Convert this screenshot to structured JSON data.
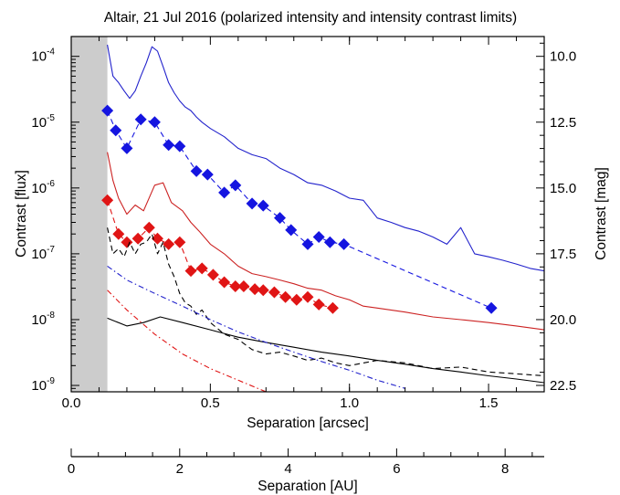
{
  "chart_data": {
    "type": "line",
    "title": "Altair, 21 Jul 2016 (polarized intensity and intensity contrast limits)",
    "xlabel": "Separation [arcsec]",
    "ylabel": "Contrast [flux]",
    "ylabel_right": "Contrast [mag]",
    "x2label": "Separation [AU]",
    "xlim": [
      0.0,
      1.7
    ],
    "ylim": [
      8e-10,
      0.0002
    ],
    "yscale": "log",
    "x_ticks": [
      "0.0",
      "0.5",
      "1.0",
      "1.5"
    ],
    "y_ticks": [
      {
        "value": 0.0001,
        "base": "10",
        "exp": "-4"
      },
      {
        "value": 1e-05,
        "base": "10",
        "exp": "-5"
      },
      {
        "value": 1e-06,
        "base": "10",
        "exp": "-6"
      },
      {
        "value": 1e-07,
        "base": "10",
        "exp": "-7"
      },
      {
        "value": 1e-08,
        "base": "10",
        "exp": "-8"
      },
      {
        "value": 1e-09,
        "base": "10",
        "exp": "-9"
      }
    ],
    "mag_ticks": [
      "10.0",
      "12.5",
      "15.0",
      "17.5",
      "20.0",
      "22.5"
    ],
    "au_ticks": [
      "0",
      "2",
      "4",
      "6",
      "8"
    ],
    "au_per_arcsec": 5.13,
    "masked_region_x": [
      0.0,
      0.13
    ],
    "series": [
      {
        "style": "solid",
        "color": "#2222cc",
        "x": [
          0.13,
          0.15,
          0.17,
          0.19,
          0.21,
          0.23,
          0.25,
          0.27,
          0.29,
          0.31,
          0.33,
          0.35,
          0.37,
          0.39,
          0.41,
          0.43,
          0.45,
          0.47,
          0.5,
          0.55,
          0.6,
          0.65,
          0.7,
          0.75,
          0.8,
          0.85,
          0.9,
          0.95,
          1.0,
          1.05,
          1.1,
          1.15,
          1.2,
          1.25,
          1.3,
          1.35,
          1.4,
          1.45,
          1.5,
          1.55,
          1.6,
          1.65,
          1.7
        ],
        "y": [
          0.00015,
          5e-05,
          4e-05,
          3e-05,
          2.3e-05,
          3e-05,
          5e-05,
          8e-05,
          0.00014,
          0.00012,
          7e-05,
          4e-05,
          2.8e-05,
          2.1e-05,
          1.7e-05,
          1.5e-05,
          1.2e-05,
          1e-05,
          8e-06,
          6e-06,
          4e-06,
          3.2e-06,
          2.8e-06,
          2e-06,
          1.6e-06,
          1.2e-06,
          1.1e-06,
          9e-07,
          7e-07,
          6.5e-07,
          3.5e-07,
          3e-07,
          2.5e-07,
          2.2e-07,
          1.8e-07,
          1.4e-07,
          2.5e-07,
          1e-07,
          9e-08,
          8e-08,
          7e-08,
          6e-08,
          5.5e-08
        ]
      },
      {
        "style": "dashed-markers",
        "color": "#1515e0",
        "x": [
          0.13,
          0.16,
          0.2,
          0.25,
          0.3,
          0.35,
          0.39,
          0.45,
          0.49,
          0.55,
          0.59,
          0.65,
          0.69,
          0.75,
          0.79,
          0.85,
          0.89,
          0.93,
          0.98,
          1.51
        ],
        "y": [
          1.5e-05,
          7.5e-06,
          4e-06,
          1.1e-05,
          1e-05,
          4.5e-06,
          4.3e-06,
          1.8e-06,
          1.6e-06,
          8.5e-07,
          1.1e-06,
          5.8e-07,
          5.4e-07,
          3.5e-07,
          2.3e-07,
          1.4e-07,
          1.8e-07,
          1.5e-07,
          1.4e-07,
          1.5e-08
        ]
      },
      {
        "style": "solid",
        "color": "#cc2222",
        "x": [
          0.13,
          0.15,
          0.17,
          0.2,
          0.23,
          0.26,
          0.3,
          0.33,
          0.36,
          0.4,
          0.43,
          0.46,
          0.5,
          0.55,
          0.6,
          0.65,
          0.7,
          0.75,
          0.8,
          0.85,
          0.9,
          0.95,
          1.0,
          1.05,
          1.1,
          1.2,
          1.3,
          1.4,
          1.5,
          1.6,
          1.7
        ],
        "y": [
          3.5e-06,
          1.3e-06,
          7e-07,
          4e-07,
          5.5e-07,
          4.5e-07,
          1.1e-06,
          1.2e-06,
          6e-07,
          4.5e-07,
          3e-07,
          2.2e-07,
          1.4e-07,
          1e-07,
          6.5e-08,
          5e-08,
          4.5e-08,
          4e-08,
          3.5e-08,
          3e-08,
          2.8e-08,
          2.3e-08,
          2e-08,
          1.6e-08,
          1.5e-08,
          1.3e-08,
          1.1e-08,
          1e-08,
          9e-09,
          8e-09,
          7e-09
        ]
      },
      {
        "style": "dashed-markers",
        "color": "#e01515",
        "x": [
          0.13,
          0.17,
          0.2,
          0.24,
          0.28,
          0.31,
          0.35,
          0.39,
          0.43,
          0.47,
          0.51,
          0.55,
          0.59,
          0.62,
          0.66,
          0.69,
          0.73,
          0.77,
          0.81,
          0.85,
          0.89,
          0.94
        ],
        "y": [
          6.5e-07,
          2e-07,
          1.5e-07,
          1.7e-07,
          2.5e-07,
          1.7e-07,
          1.4e-07,
          1.5e-07,
          5.5e-08,
          6e-08,
          4.8e-08,
          3.7e-08,
          3.2e-08,
          3.2e-08,
          2.9e-08,
          2.8e-08,
          2.6e-08,
          2.2e-08,
          2e-08,
          2.2e-08,
          1.7e-08,
          1.5e-08
        ]
      },
      {
        "style": "dashed",
        "color": "#000000",
        "x": [
          0.13,
          0.15,
          0.17,
          0.19,
          0.21,
          0.23,
          0.25,
          0.27,
          0.29,
          0.31,
          0.33,
          0.35,
          0.37,
          0.39,
          0.41,
          0.43,
          0.45,
          0.47,
          0.5,
          0.55,
          0.6,
          0.65,
          0.7,
          0.75,
          0.8,
          0.85,
          0.9,
          0.95,
          1.0,
          1.1,
          1.2,
          1.3,
          1.4,
          1.5,
          1.6,
          1.7
        ],
        "y": [
          2.5e-07,
          1e-07,
          1.2e-07,
          9e-08,
          1.5e-07,
          1e-07,
          1.4e-07,
          1.5e-07,
          2e-07,
          1e-07,
          1.5e-07,
          7e-08,
          4.5e-08,
          2.5e-08,
          1.8e-08,
          1.6e-08,
          1.2e-08,
          1.4e-08,
          9e-09,
          6e-09,
          5e-09,
          3.5e-09,
          3e-09,
          3.2e-09,
          2.8e-09,
          2.4e-09,
          2.6e-09,
          2.2e-09,
          2e-09,
          2.4e-09,
          2.2e-09,
          1.8e-09,
          1.9e-09,
          1.6e-09,
          1.5e-09,
          1.4e-09
        ]
      },
      {
        "style": "solid",
        "color": "#000000",
        "x": [
          0.13,
          0.2,
          0.26,
          0.32,
          0.4,
          0.5,
          0.6,
          0.7,
          0.8,
          0.9,
          1.0,
          1.1,
          1.2,
          1.3,
          1.4,
          1.5,
          1.6,
          1.7
        ],
        "y": [
          1.05e-08,
          8e-09,
          9e-09,
          1.1e-08,
          9e-09,
          7e-09,
          5.4e-09,
          4.5e-09,
          3.8e-09,
          3.2e-09,
          2.8e-09,
          2.4e-09,
          2.1e-09,
          1.8e-09,
          1.6e-09,
          1.4e-09,
          1.25e-09,
          1.1e-09
        ]
      },
      {
        "style": "dashdot",
        "color": "#2222cc",
        "x": [
          0.13,
          0.2,
          0.3,
          0.4,
          0.5,
          0.6,
          0.7,
          0.8,
          0.9,
          1.0,
          1.1,
          1.2
        ],
        "y": [
          6.5e-08,
          4e-08,
          2.5e-08,
          1.6e-08,
          1e-08,
          6.5e-09,
          4.5e-09,
          3.2e-09,
          2.3e-09,
          1.7e-09,
          1.2e-09,
          9e-10
        ]
      },
      {
        "style": "dashdot",
        "color": "#e01515",
        "x": [
          0.13,
          0.2,
          0.3,
          0.4,
          0.5,
          0.6,
          0.7
        ],
        "y": [
          2.8e-08,
          1.4e-08,
          6e-09,
          3e-09,
          1.8e-09,
          1.2e-09,
          8e-10
        ]
      }
    ]
  }
}
